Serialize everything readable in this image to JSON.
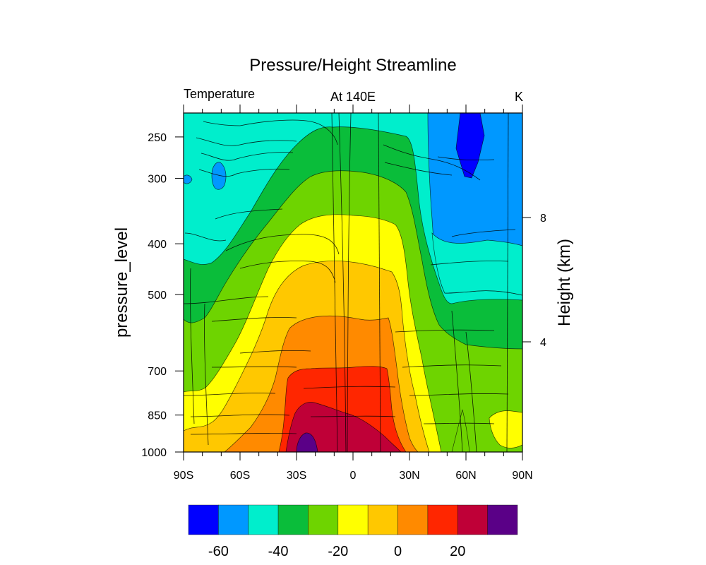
{
  "chart_data": {
    "type": "heatmap",
    "subtype": "filled-contour with streamlines",
    "title": "Pressure/Height Streamline",
    "left_string": "Temperature",
    "center_string": "At 140E",
    "right_string": "K",
    "xlabel": "",
    "ylabel": "pressure_level",
    "right_axis_label": "Height (km)",
    "x_ticks": [
      {
        "value": -90,
        "label": "90S"
      },
      {
        "value": -60,
        "label": "60S"
      },
      {
        "value": -30,
        "label": "30S"
      },
      {
        "value": 0,
        "label": "0"
      },
      {
        "value": 30,
        "label": "30N"
      },
      {
        "value": 60,
        "label": "60N"
      },
      {
        "value": 90,
        "label": "90N"
      }
    ],
    "xlim": [
      -90,
      90
    ],
    "y_ticks": [
      {
        "value": 250,
        "label": "250"
      },
      {
        "value": 300,
        "label": "300"
      },
      {
        "value": 400,
        "label": "400"
      },
      {
        "value": 500,
        "label": "500"
      },
      {
        "value": 700,
        "label": "700"
      },
      {
        "value": 850,
        "label": "850"
      },
      {
        "value": 1000,
        "label": "1000"
      }
    ],
    "ylim": [
      1000,
      225
    ],
    "yscale": "log-pressure",
    "right_ticks": [
      {
        "value": 8,
        "label": "8"
      },
      {
        "value": 4,
        "label": "4"
      }
    ],
    "colorbar": {
      "levels": [
        -70,
        -60,
        -50,
        -40,
        -30,
        -20,
        -10,
        0,
        10,
        20,
        30
      ],
      "labels": [
        {
          "value": -60,
          "label": "-60"
        },
        {
          "value": -40,
          "label": "-40"
        },
        {
          "value": -20,
          "label": "-20"
        },
        {
          "value": 0,
          "label": "0"
        },
        {
          "value": 20,
          "label": "20"
        }
      ],
      "colors": [
        "#0000ff",
        "#0098ff",
        "#00eecc",
        "#0abd3a",
        "#6ed400",
        "#ffff00",
        "#ffc800",
        "#ff8a00",
        "#ff2600",
        "#bf0037",
        "#5a0087"
      ],
      "placement": "bottom"
    },
    "contour_regions": [
      {
        "band": 2,
        "note": "cyan background, upper troposphere"
      },
      {
        "band": 3,
        "note": "dark green arch"
      },
      {
        "band": 4,
        "note": "light green arch"
      },
      {
        "band": 5,
        "note": "yellow arch"
      },
      {
        "band": 6,
        "note": "gold arch"
      },
      {
        "band": 7,
        "note": "orange arch"
      },
      {
        "band": 8,
        "note": "red core"
      },
      {
        "band": 9,
        "note": "crimson surface core"
      },
      {
        "band": 10,
        "note": "purple near 25S surface"
      },
      {
        "band": 1,
        "note": "blue region north of 40N aloft"
      },
      {
        "band": 0,
        "note": "deep blue near 60N 250hPa"
      }
    ]
  }
}
